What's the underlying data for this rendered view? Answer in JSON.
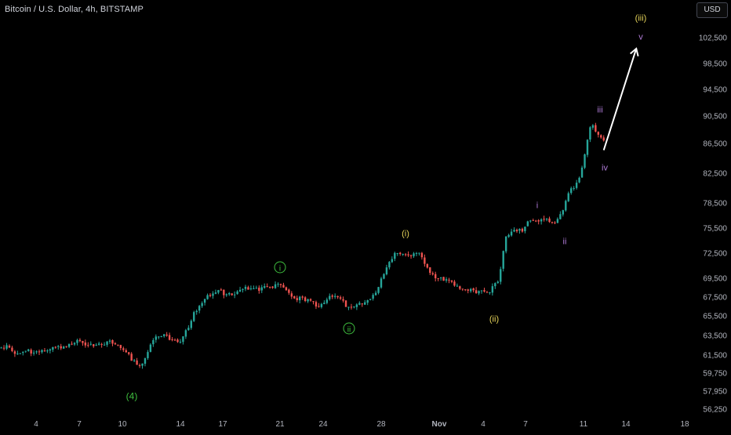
{
  "chart_title": "Bitcoin / U.S. Dollar, 4h, BITSTAMP",
  "currency_button": "USD",
  "colors": {
    "background": "#000000",
    "up": "#26a69a",
    "down": "#ef5350",
    "axis_text": "#b2b5be",
    "arrow": "#ffffff",
    "green_label": "#3fbf3f",
    "yellow_label": "#e6d45a",
    "purple_label": "#b07cd8"
  },
  "chart_data": {
    "type": "candlestick",
    "y_ticks": [
      "56,250",
      "57,950",
      "59,750",
      "61,500",
      "63,500",
      "65,500",
      "67,500",
      "69,500",
      "72,500",
      "75,500",
      "78,500",
      "82,500",
      "86,500",
      "90,500",
      "94,500",
      "98,500",
      "102,500"
    ],
    "x_ticks": [
      "4",
      "7",
      "10",
      "14",
      "17",
      "21",
      "24",
      "28",
      "Nov",
      "4",
      "7",
      "11",
      "14",
      "18"
    ],
    "wave_labels": [
      {
        "text": "(4)",
        "color": "green"
      },
      {
        "text": "i",
        "color": "green",
        "circled": true
      },
      {
        "text": "ii",
        "color": "green",
        "circled": true
      },
      {
        "text": "(i)",
        "color": "yellow"
      },
      {
        "text": "(ii)",
        "color": "yellow"
      },
      {
        "text": "i",
        "color": "purple"
      },
      {
        "text": "ii",
        "color": "purple"
      },
      {
        "text": "iii",
        "color": "purple"
      },
      {
        "text": "iv",
        "color": "purple"
      },
      {
        "text": "(iii)",
        "color": "yellow"
      },
      {
        "text": "v",
        "color": "purple"
      }
    ],
    "price_path": [
      [
        0,
        62300
      ],
      [
        1,
        61900
      ],
      [
        3,
        62600
      ],
      [
        5,
        61800
      ],
      [
        7,
        61600
      ],
      [
        10,
        62100
      ],
      [
        12,
        61700
      ],
      [
        15,
        62000
      ],
      [
        18,
        61900
      ],
      [
        21,
        62300
      ],
      [
        24,
        62500
      ],
      [
        27,
        62700
      ],
      [
        30,
        63000
      ],
      [
        33,
        62400
      ],
      [
        37,
        62700
      ],
      [
        40,
        62800
      ],
      [
        43,
        62500
      ],
      [
        46,
        61800
      ],
      [
        49,
        61000
      ],
      [
        51,
        60200
      ],
      [
        53,
        60800
      ],
      [
        56,
        62700
      ],
      [
        58,
        63600
      ],
      [
        61,
        63400
      ],
      [
        63,
        63200
      ],
      [
        66,
        62500
      ],
      [
        68,
        63500
      ],
      [
        71,
        65500
      ],
      [
        73,
        66200
      ],
      [
        76,
        67400
      ],
      [
        78,
        68000
      ],
      [
        81,
        68300
      ],
      [
        83,
        67800
      ],
      [
        86,
        67900
      ],
      [
        89,
        68200
      ],
      [
        92,
        68500
      ],
      [
        95,
        68300
      ],
      [
        98,
        68600
      ],
      [
        101,
        68700
      ],
      [
        104,
        68900
      ],
      [
        106,
        67800
      ],
      [
        109,
        67300
      ],
      [
        112,
        67300
      ],
      [
        115,
        67200
      ],
      [
        117,
        66500
      ],
      [
        119,
        67000
      ],
      [
        122,
        67600
      ],
      [
        124,
        67700
      ],
      [
        126,
        67100
      ],
      [
        128,
        66500
      ],
      [
        131,
        66700
      ],
      [
        134,
        66800
      ],
      [
        137,
        67400
      ],
      [
        139,
        68200
      ],
      [
        141,
        69800
      ],
      [
        143,
        71000
      ],
      [
        146,
        72700
      ],
      [
        149,
        72400
      ],
      [
        152,
        72200
      ],
      [
        155,
        72300
      ],
      [
        157,
        71000
      ],
      [
        159,
        69800
      ],
      [
        161,
        69700
      ],
      [
        164,
        69200
      ],
      [
        167,
        69000
      ],
      [
        170,
        68400
      ],
      [
        172,
        68300
      ],
      [
        175,
        68000
      ],
      [
        177,
        68500
      ],
      [
        179,
        67700
      ],
      [
        181,
        68300
      ],
      [
        184,
        69300
      ],
      [
        186,
        74000
      ],
      [
        188,
        75200
      ],
      [
        190,
        75400
      ],
      [
        193,
        75200
      ],
      [
        195,
        76600
      ],
      [
        197,
        76100
      ],
      [
        199,
        76600
      ],
      [
        201,
        76700
      ],
      [
        203,
        76000
      ],
      [
        205,
        76400
      ],
      [
        208,
        78200
      ],
      [
        210,
        80200
      ],
      [
        212,
        80800
      ],
      [
        214,
        81900
      ],
      [
        216,
        86300
      ],
      [
        218,
        89500
      ],
      [
        220,
        88200
      ],
      [
        222,
        86800
      ]
    ],
    "projection": {
      "from": [
        222,
        85600
      ],
      "to": [
        234,
        100800
      ]
    }
  }
}
